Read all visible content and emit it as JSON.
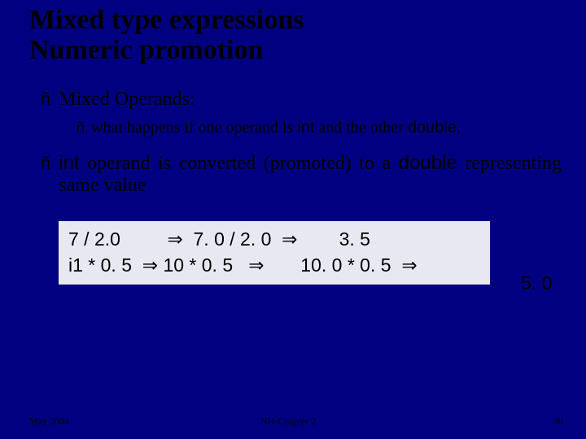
{
  "slide": {
    "title_line1": "Mixed type expressions",
    "title_line2": "Numeric promotion",
    "bullet1": "Mixed Operands:",
    "bullet1_sub_pre": "what happens if one operand is ",
    "bullet1_sub_mid": " and the other ",
    "kw_int": "int",
    "kw_double": "double",
    "bullet1_sub_tail": ",",
    "bullet2_mid1": " operand is converted (promoted) to a ",
    "bullet2_tail": " representing same value",
    "code_row1": "7 / 2.0         ⇒  7. 0 / 2. 0  ⇒        3. 5",
    "code_row2": "i1 * 0. 5  ⇒ 10 * 0. 5   ⇒       10. 0 * 0. 5  ⇒",
    "overflow_val": "5. 0",
    "arrow_glyph": "ñ"
  },
  "footer": {
    "date": "May 2004",
    "chapter": "NH-Chapter 2",
    "page": "30"
  },
  "colors": {
    "background": "#000080",
    "title": "#000000",
    "body_text": "#000000",
    "codebox_bg": "#e8e8f2"
  }
}
